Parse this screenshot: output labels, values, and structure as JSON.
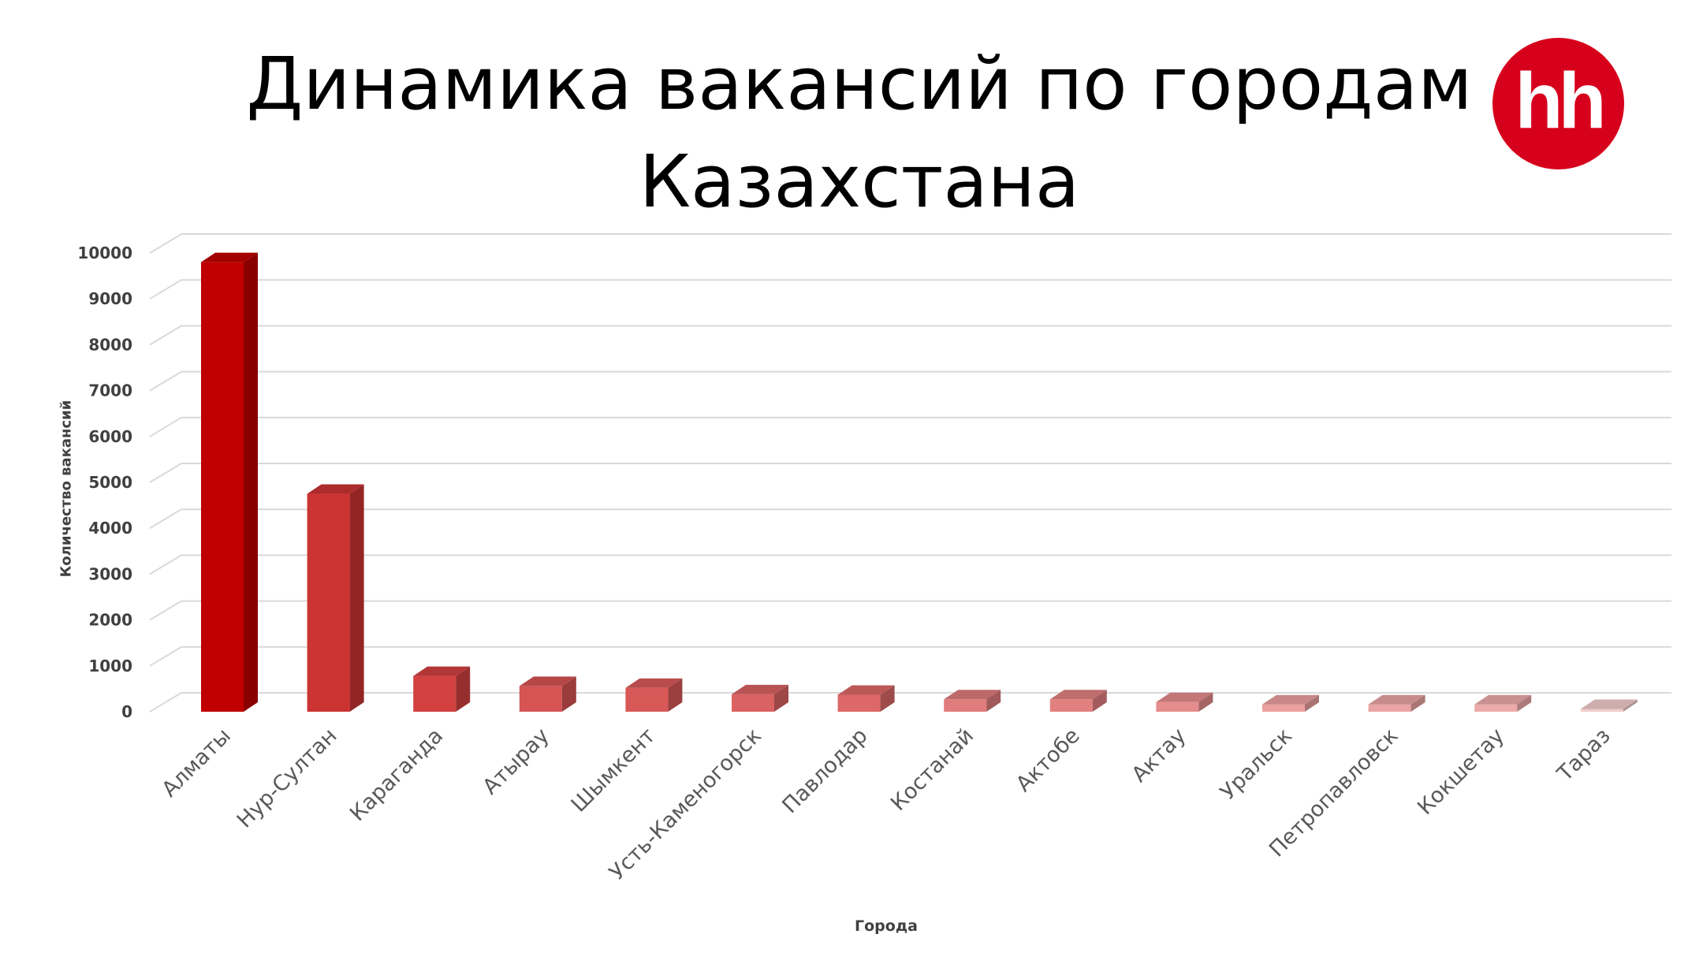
{
  "title": "Динамика вакансий по городам Казахстана",
  "logo": {
    "text": "hh",
    "color": "#d6001c"
  },
  "chart_data": {
    "type": "bar",
    "style": "3d-column",
    "title": "Динамика вакансий по городам Казахстана",
    "xlabel": "Города",
    "ylabel": "Количество вакансий",
    "ylim": [
      0,
      10000
    ],
    "y_ticks": [
      "0",
      "1000",
      "2000",
      "3000",
      "4000",
      "5000",
      "6000",
      "7000",
      "8000",
      "9000",
      "10000"
    ],
    "grid": true,
    "legend": "none",
    "categories": [
      "Алматы",
      "Нур-Султан",
      "Караганда",
      "Атырау",
      "Шымкент",
      "Усть-Каменогорск",
      "Павлодар",
      "Костанай",
      "Актобе",
      "Актау",
      "Уральск",
      "Петропавловск",
      "Кокшетау",
      "Тараз"
    ],
    "values": [
      9800,
      4750,
      780,
      560,
      520,
      380,
      370,
      270,
      270,
      210,
      160,
      160,
      160,
      60
    ],
    "bar_colors": [
      "#c00000",
      "#cc3333",
      "#d24040",
      "#d65454",
      "#d85858",
      "#da6262",
      "#dc6868",
      "#e07c7c",
      "#e28080",
      "#e58c8c",
      "#eba0a0",
      "#eba4a4",
      "#edaaaa",
      "#f2cccc"
    ]
  }
}
